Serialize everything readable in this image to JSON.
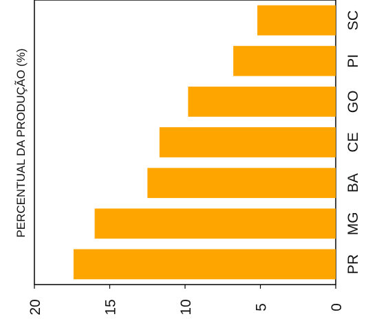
{
  "chart_data": {
    "type": "bar",
    "orientation": "horizontal",
    "rotation_note": "figure rendered rotated 90 degrees counter-clockwise",
    "ylabel": "PERCENTUAL DA PRODUÇÃO (%)",
    "categories": [
      "PR",
      "MG",
      "BA",
      "CE",
      "GO",
      "PI",
      "SC"
    ],
    "values": [
      17.4,
      16.0,
      12.5,
      11.7,
      9.8,
      6.8,
      5.2
    ],
    "ylim": [
      0,
      20
    ],
    "ticks": [
      "0",
      "5",
      "10",
      "15",
      "20"
    ],
    "bar_color": "#FFA500",
    "grid": false,
    "legend": "none"
  }
}
